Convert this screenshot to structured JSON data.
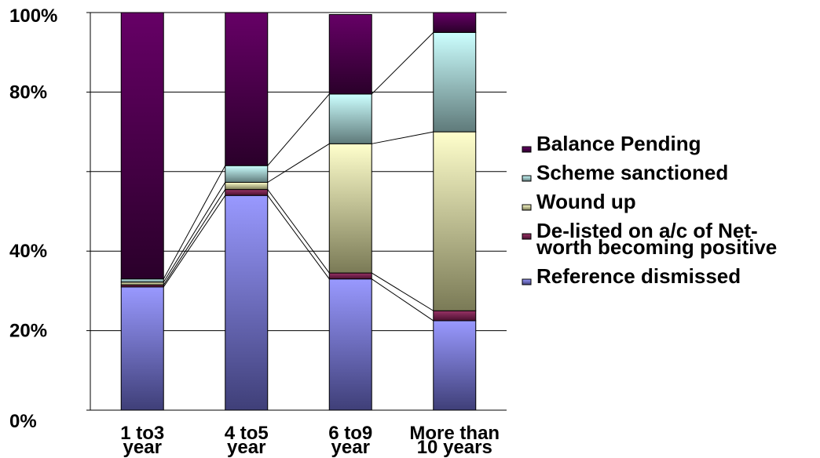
{
  "chart_data": {
    "type": "bar",
    "stacked": true,
    "percent": true,
    "categories": [
      [
        "1 to3",
        "year"
      ],
      [
        "4 to5",
        "year"
      ],
      [
        "6 to9",
        "year"
      ],
      [
        "More than",
        "10 years"
      ]
    ],
    "y_ticks": [
      "0%",
      "20%",
      "40%",
      "80%",
      "100%"
    ],
    "y_tick_values": [
      0,
      20,
      40,
      80,
      100
    ],
    "ylim": [
      0,
      100
    ],
    "grid": true,
    "legend_position": "right",
    "series": [
      {
        "name": "Reference dismissed",
        "values": [
          31,
          54,
          33,
          22.5
        ],
        "color_top": "#9999ff",
        "color_bottom": "#3f3f78"
      },
      {
        "name": [
          "De-listed on a/c of Net-",
          "worth becoming positive"
        ],
        "values": [
          0.5,
          1.5,
          1.5,
          2.5
        ],
        "color_top": "#993366",
        "color_bottom": "#4a1030"
      },
      {
        "name": "Wound up",
        "values": [
          0.7,
          1.8,
          32.5,
          45
        ],
        "color_top": "#ffffcc",
        "color_bottom": "#7a7a56"
      },
      {
        "name": "Scheme sanctioned",
        "values": [
          0.8,
          4.2,
          12.5,
          25
        ],
        "color_top": "#ccffff",
        "color_bottom": "#5f7a7a"
      },
      {
        "name": "Balance Pending",
        "values": [
          67,
          38.5,
          20,
          5
        ],
        "color_top": "#660066",
        "color_bottom": "#2a002a"
      }
    ]
  }
}
